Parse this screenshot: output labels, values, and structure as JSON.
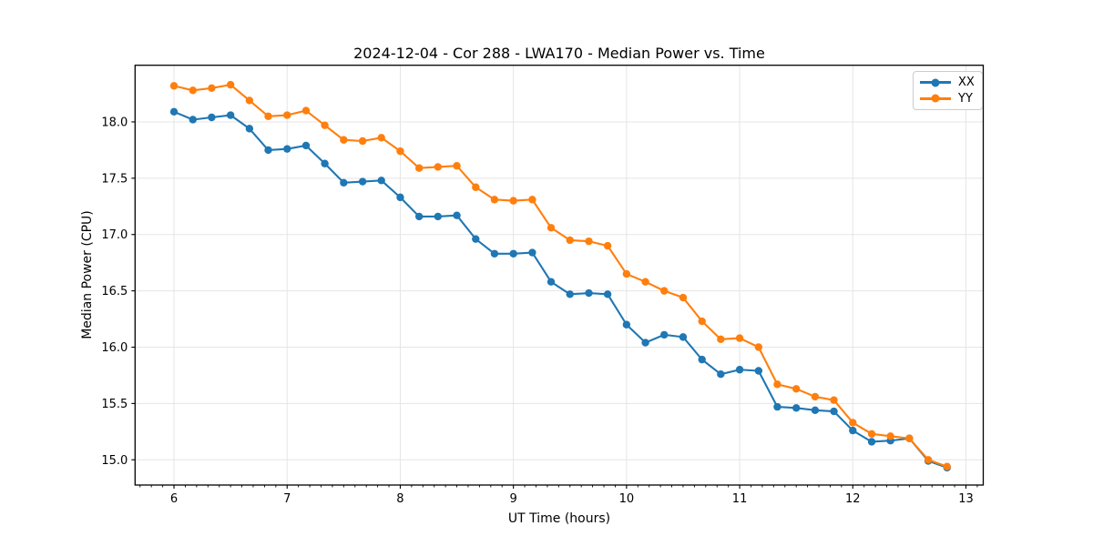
{
  "chart_data": {
    "type": "line",
    "title": "2024-12-04 - Cor 288 - LWA170 - Median Power vs. Time",
    "xlabel": "UT Time (hours)",
    "ylabel": "Median Power (CPU)",
    "x": [
      6.0,
      6.167,
      6.333,
      6.5,
      6.667,
      6.833,
      7.0,
      7.167,
      7.333,
      7.5,
      7.667,
      7.833,
      8.0,
      8.167,
      8.333,
      8.5,
      8.667,
      8.833,
      9.0,
      9.167,
      9.333,
      9.5,
      9.667,
      9.833,
      10.0,
      10.167,
      10.333,
      10.5,
      10.667,
      10.833,
      11.0,
      11.167,
      11.333,
      11.5,
      11.667,
      11.833,
      12.0,
      12.167,
      12.333,
      12.5,
      12.667,
      12.833
    ],
    "series": [
      {
        "name": "XX",
        "color": "#1f77b4",
        "values": [
          18.09,
          18.02,
          18.04,
          18.06,
          17.94,
          17.75,
          17.76,
          17.79,
          17.63,
          17.46,
          17.47,
          17.48,
          17.33,
          17.16,
          17.16,
          17.17,
          16.96,
          16.83,
          16.83,
          16.84,
          16.58,
          16.47,
          16.48,
          16.47,
          16.2,
          16.04,
          16.11,
          16.09,
          15.89,
          15.76,
          15.8,
          15.79,
          15.47,
          15.46,
          15.44,
          15.43,
          15.26,
          15.16,
          15.17,
          15.19,
          14.99,
          14.93
        ]
      },
      {
        "name": "YY",
        "color": "#ff7f0e",
        "values": [
          18.32,
          18.28,
          18.3,
          18.33,
          18.19,
          18.05,
          18.06,
          18.1,
          17.97,
          17.84,
          17.83,
          17.86,
          17.74,
          17.59,
          17.6,
          17.61,
          17.42,
          17.31,
          17.3,
          17.31,
          17.06,
          16.95,
          16.94,
          16.9,
          16.65,
          16.58,
          16.5,
          16.44,
          16.23,
          16.07,
          16.08,
          16.0,
          15.67,
          15.63,
          15.56,
          15.53,
          15.33,
          15.23,
          15.21,
          15.19,
          15.0,
          14.94
        ]
      }
    ],
    "xlim": [
      5.656,
      13.153
    ],
    "ylim": [
      14.776,
      18.503
    ],
    "x_ticks": [
      6,
      7,
      8,
      9,
      10,
      11,
      12,
      13
    ],
    "x_tick_labels": [
      "6",
      "7",
      "8",
      "9",
      "10",
      "11",
      "12",
      "13"
    ],
    "x_minor_tick_step": 0.1,
    "y_ticks": [
      15.0,
      15.5,
      16.0,
      16.5,
      17.0,
      17.5,
      18.0
    ],
    "y_tick_labels": [
      "15.0",
      "15.5",
      "16.0",
      "16.5",
      "17.0",
      "17.5",
      "18.0"
    ],
    "grid": true,
    "grid_color": "#e5e5e5",
    "spine_color": "#000000",
    "legend": {
      "position": "upper right",
      "items": [
        "XX",
        "YY"
      ]
    },
    "marker": "circle",
    "marker_size": 8.4,
    "line_width": 2.1
  }
}
